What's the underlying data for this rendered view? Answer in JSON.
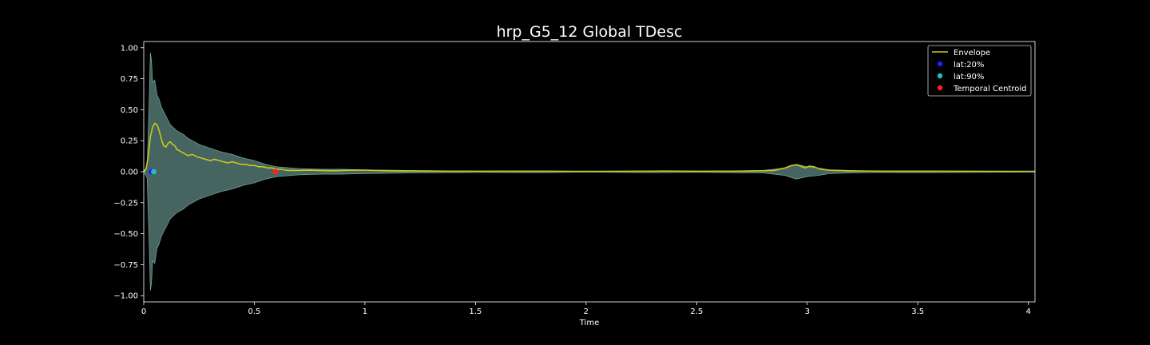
{
  "chart_data": {
    "type": "line",
    "title": "hrp_G5_12 Global TDesc",
    "xlabel": "Time",
    "ylabel": "",
    "xlim": [
      0,
      4.03
    ],
    "ylim": [
      -1.05,
      1.05
    ],
    "x_ticks": [
      0,
      0.5,
      1,
      1.5,
      2,
      2.5,
      3,
      3.5,
      4
    ],
    "x_tick_labels": [
      "0",
      "0.5",
      "1",
      "1.5",
      "2",
      "2.5",
      "3",
      "3.5",
      "4"
    ],
    "y_ticks": [
      1.0,
      0.75,
      0.5,
      0.25,
      0.0,
      -0.25,
      -0.5,
      -0.75,
      -1.0
    ],
    "y_tick_labels": [
      "1.00",
      "0.75",
      "0.50",
      "0.25",
      "0.00",
      "−0.25",
      "−0.50",
      "−0.75",
      "−1.00"
    ],
    "grid": false,
    "legend_position": "top-right",
    "colors": {
      "background": "#000000",
      "axes": "#ffffff",
      "waveform": "#7fb8b0",
      "envelope": "#c8c81e",
      "lat20": "#1f1fff",
      "lat90": "#1fc0c0",
      "centroid": "#ff1f1f"
    },
    "series": [
      {
        "name": "Envelope",
        "kind": "line",
        "x": [
          0,
          0.01,
          0.02,
          0.03,
          0.04,
          0.05,
          0.06,
          0.07,
          0.08,
          0.09,
          0.1,
          0.11,
          0.12,
          0.13,
          0.14,
          0.15,
          0.16,
          0.17,
          0.18,
          0.2,
          0.22,
          0.24,
          0.26,
          0.28,
          0.3,
          0.32,
          0.34,
          0.36,
          0.38,
          0.4,
          0.42,
          0.44,
          0.46,
          0.48,
          0.5,
          0.52,
          0.54,
          0.56,
          0.58,
          0.6,
          0.62,
          0.65,
          0.7,
          0.75,
          0.8,
          0.85,
          0.9,
          0.95,
          1.0,
          1.05,
          1.1,
          1.2,
          1.4,
          1.6,
          1.8,
          2.0,
          2.2,
          2.35,
          2.5,
          2.7,
          2.85,
          2.9,
          2.93,
          2.95,
          2.97,
          2.99,
          3.01,
          3.03,
          3.06,
          3.1,
          3.2,
          3.4,
          3.6,
          3.8,
          4.03
        ],
        "y": [
          0.0,
          0.02,
          0.12,
          0.28,
          0.36,
          0.39,
          0.38,
          0.33,
          0.26,
          0.21,
          0.2,
          0.23,
          0.24,
          0.22,
          0.21,
          0.18,
          0.17,
          0.16,
          0.15,
          0.13,
          0.14,
          0.12,
          0.11,
          0.1,
          0.09,
          0.1,
          0.09,
          0.08,
          0.07,
          0.08,
          0.07,
          0.06,
          0.06,
          0.05,
          0.05,
          0.04,
          0.04,
          0.03,
          0.03,
          0.02,
          0.02,
          0.01,
          0.01,
          0.012,
          0.01,
          0.008,
          0.01,
          0.012,
          0.012,
          0.01,
          0.008,
          0.006,
          0.004,
          0.004,
          0.003,
          0.003,
          0.003,
          0.005,
          0.004,
          0.004,
          0.01,
          0.03,
          0.05,
          0.055,
          0.045,
          0.03,
          0.045,
          0.04,
          0.02,
          0.012,
          0.006,
          0.004,
          0.004,
          0.003,
          0.003
        ]
      },
      {
        "name": "waveform-amplitude",
        "kind": "fill",
        "x": [
          0,
          0.015,
          0.025,
          0.03,
          0.035,
          0.04,
          0.05,
          0.06,
          0.07,
          0.08,
          0.1,
          0.12,
          0.15,
          0.18,
          0.2,
          0.25,
          0.3,
          0.35,
          0.4,
          0.45,
          0.5,
          0.55,
          0.6,
          0.7,
          0.8,
          0.9,
          1.0,
          1.2,
          1.5,
          1.8,
          2.0,
          2.3,
          2.5,
          2.8,
          2.9,
          2.95,
          3.0,
          3.05,
          3.1,
          3.3,
          3.5,
          3.8,
          4.03
        ],
        "y": [
          0.0,
          0.05,
          0.6,
          0.96,
          0.9,
          0.72,
          0.74,
          0.62,
          0.58,
          0.52,
          0.45,
          0.38,
          0.33,
          0.3,
          0.27,
          0.22,
          0.19,
          0.16,
          0.14,
          0.11,
          0.09,
          0.06,
          0.04,
          0.025,
          0.02,
          0.02,
          0.015,
          0.01,
          0.006,
          0.008,
          0.004,
          0.008,
          0.005,
          0.01,
          0.03,
          0.06,
          0.04,
          0.03,
          0.015,
          0.006,
          0.008,
          0.005,
          0.004
        ]
      }
    ],
    "points": [
      {
        "name": "lat:20%",
        "x": 0.035,
        "y": 0.0
      },
      {
        "name": "lat:90%",
        "x": 0.045,
        "y": 0.0
      },
      {
        "name": "Temporal Centroid",
        "x": 0.595,
        "y": 0.0
      }
    ],
    "legend": [
      "Envelope",
      "lat:20%",
      "lat:90%",
      "Temporal Centroid"
    ]
  }
}
